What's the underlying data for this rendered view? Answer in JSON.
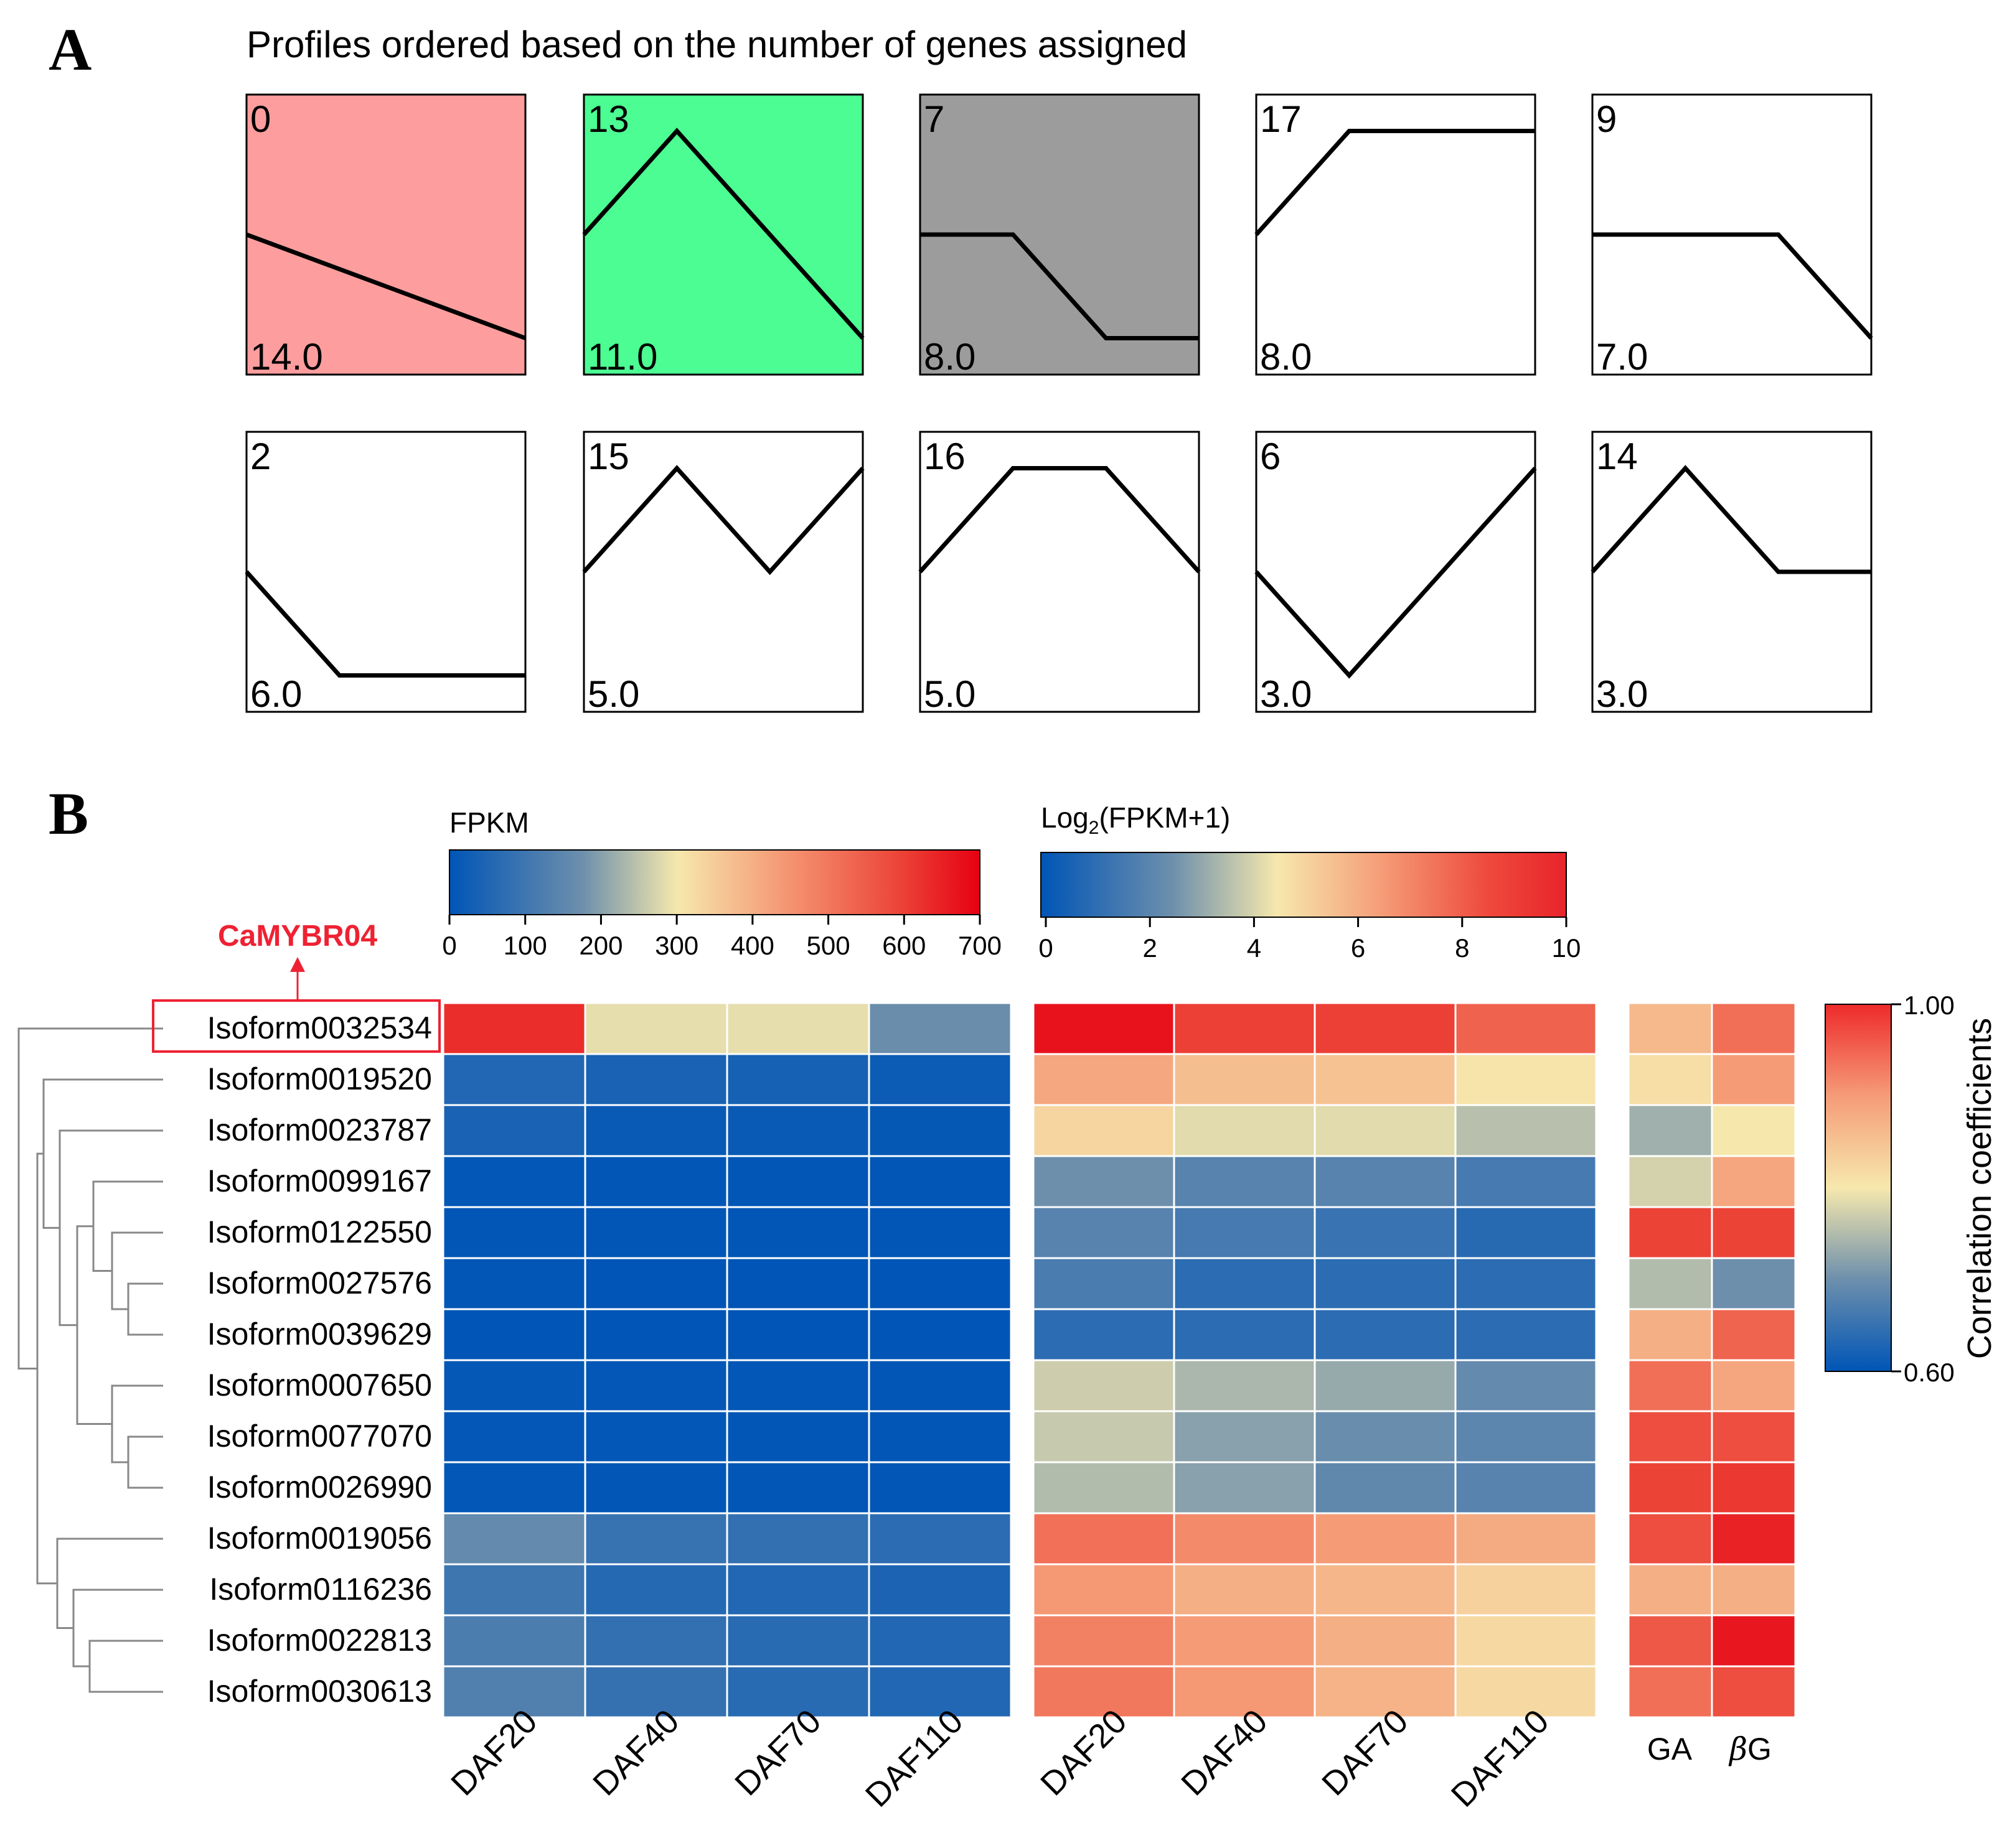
{
  "panel_a": {
    "letter": "A",
    "title": "Profiles ordered based on the number of genes assigned",
    "profiles": [
      {
        "id": "0",
        "count": "14.0",
        "bg": "#fd9d9d",
        "points": [
          2,
          1
        ]
      },
      {
        "id": "13",
        "count": "11.0",
        "bg": "#4bfd92",
        "points": [
          2,
          3,
          2,
          1
        ]
      },
      {
        "id": "7",
        "count": "8.0",
        "bg": "#9c9c9c",
        "points": [
          2,
          2,
          1,
          1
        ]
      },
      {
        "id": "17",
        "count": "8.0",
        "bg": "#ffffff",
        "points": [
          2,
          3,
          3,
          3
        ]
      },
      {
        "id": "9",
        "count": "7.0",
        "bg": "#ffffff",
        "points": [
          2,
          2,
          2,
          1
        ]
      },
      {
        "id": "2",
        "count": "6.0",
        "bg": "#ffffff",
        "points": [
          2,
          1,
          1,
          1
        ]
      },
      {
        "id": "15",
        "count": "5.0",
        "bg": "#ffffff",
        "points": [
          2,
          3,
          2,
          3
        ]
      },
      {
        "id": "16",
        "count": "5.0",
        "bg": "#ffffff",
        "points": [
          2,
          3,
          3,
          2
        ]
      },
      {
        "id": "6",
        "count": "3.0",
        "bg": "#ffffff",
        "points": [
          2,
          1,
          2,
          3
        ]
      },
      {
        "id": "14",
        "count": "3.0",
        "bg": "#ffffff",
        "points": [
          2,
          3,
          2,
          2
        ]
      }
    ]
  },
  "panel_b": {
    "letter": "B",
    "highlight_label": "CaMYBR04",
    "highlight_color": "#ee2233",
    "rows": [
      "Isoform0032534",
      "Isoform0019520",
      "Isoform0023787",
      "Isoform0099167",
      "Isoform0122550",
      "Isoform0027576",
      "Isoform0039629",
      "Isoform0007650",
      "Isoform0077070",
      "Isoform0026990",
      "Isoform0019056",
      "Isoform0116236",
      "Isoform0022813",
      "Isoform0030613"
    ],
    "columns": [
      "DAF20",
      "DAF40",
      "DAF70",
      "DAF110"
    ],
    "corr_columns_text": [
      "GA",
      "G"
    ],
    "beta_symbol": "β"
  },
  "chart_data": [
    {
      "type": "heatmap",
      "title": "FPKM",
      "colorbar_range": [
        0,
        700
      ],
      "colorbar_ticks": [
        "0",
        "100",
        "200",
        "300",
        "400",
        "500",
        "600",
        "700"
      ],
      "columns": [
        "DAF20",
        "DAF40",
        "DAF70",
        "DAF110"
      ],
      "values": [
        [
          630,
          300,
          300,
          170
        ],
        [
          55,
          40,
          35,
          20
        ],
        [
          40,
          15,
          15,
          10
        ],
        [
          5,
          3,
          3,
          2
        ],
        [
          3,
          3,
          2,
          2
        ],
        [
          3,
          1,
          1,
          1
        ],
        [
          1,
          1,
          1,
          1
        ],
        [
          8,
          6,
          5,
          4
        ],
        [
          6,
          5,
          4,
          3
        ],
        [
          5,
          4,
          3,
          3
        ],
        [
          160,
          90,
          80,
          70
        ],
        [
          100,
          60,
          55,
          45
        ],
        [
          120,
          80,
          65,
          55
        ],
        [
          130,
          85,
          65,
          55
        ]
      ]
    },
    {
      "type": "heatmap",
      "title": "Log2(FPKM+1)",
      "title_parts": [
        "Log",
        "2",
        "(FPKM+1)"
      ],
      "colorbar_range": [
        0,
        10
      ],
      "colorbar_ticks": [
        "0",
        "2",
        "4",
        "6",
        "8",
        "10"
      ],
      "columns": [
        "DAF20",
        "DAF40",
        "DAF70",
        "DAF110"
      ],
      "values": [
        [
          9.6,
          8.6,
          8.6,
          7.8
        ],
        [
          6.2,
          5.6,
          5.5,
          4.6
        ],
        [
          5.0,
          4.2,
          4.2,
          3.6
        ],
        [
          2.5,
          2.0,
          2.0,
          1.6
        ],
        [
          2.0,
          1.6,
          1.3,
          0.9
        ],
        [
          1.7,
          1.0,
          1.0,
          1.0
        ],
        [
          1.0,
          1.0,
          1.0,
          1.0
        ],
        [
          3.9,
          3.4,
          3.1,
          2.3
        ],
        [
          3.8,
          2.9,
          2.4,
          2.1
        ],
        [
          3.5,
          2.9,
          2.2,
          2.0
        ],
        [
          7.5,
          6.9,
          6.5,
          6.1
        ],
        [
          6.6,
          6.0,
          5.8,
          5.1
        ],
        [
          7.1,
          6.5,
          6.0,
          4.9
        ],
        [
          7.3,
          6.6,
          5.9,
          4.9
        ]
      ]
    },
    {
      "type": "heatmap",
      "title": "Correlation coefficients",
      "colorbar_range": [
        0.6,
        1.0
      ],
      "colorbar_ticks": [
        "0.60",
        "1.00"
      ],
      "columns": [
        "GA",
        "βG"
      ],
      "values": [
        [
          0.83,
          0.9
        ],
        [
          0.79,
          0.86
        ],
        [
          0.73,
          0.78
        ],
        [
          0.76,
          0.85
        ],
        [
          0.94,
          0.94
        ],
        [
          0.74,
          0.7
        ],
        [
          0.84,
          0.91
        ],
        [
          0.9,
          0.85
        ],
        [
          0.93,
          0.93
        ],
        [
          0.94,
          0.95
        ],
        [
          0.93,
          0.97
        ],
        [
          0.84,
          0.84
        ],
        [
          0.92,
          0.98
        ],
        [
          0.9,
          0.93
        ]
      ]
    }
  ]
}
